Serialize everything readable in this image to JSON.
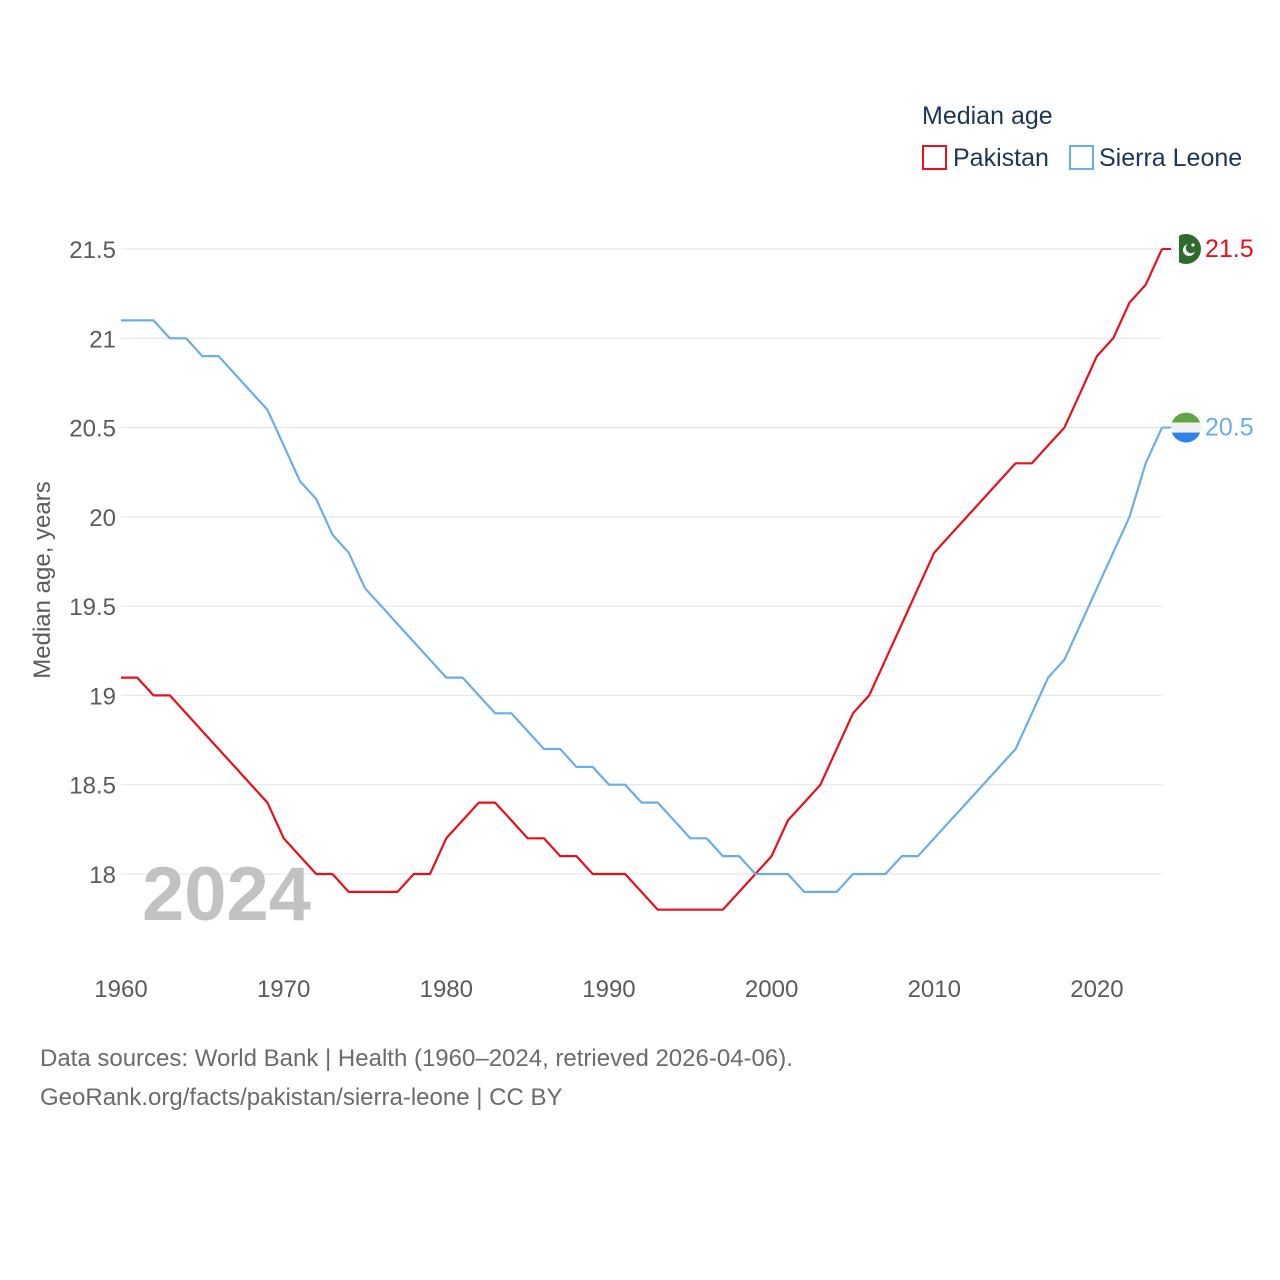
{
  "chart_data": {
    "type": "line",
    "legend_title": "Median age",
    "ylabel": "Median age, years",
    "year_label": "2024",
    "ylim": [
      17.6,
      21.6
    ],
    "xlim": [
      1960,
      2024
    ],
    "y_ticks": [
      "18",
      "18.5",
      "19",
      "19.5",
      "20",
      "20.5",
      "21",
      "21.5"
    ],
    "x_ticks": [
      "1960",
      "1970",
      "1980",
      "1990",
      "2000",
      "2010",
      "2020"
    ],
    "x": [
      1960,
      1961,
      1962,
      1963,
      1964,
      1965,
      1966,
      1967,
      1968,
      1969,
      1970,
      1971,
      1972,
      1973,
      1974,
      1975,
      1976,
      1977,
      1978,
      1979,
      1980,
      1981,
      1982,
      1983,
      1984,
      1985,
      1986,
      1987,
      1988,
      1989,
      1990,
      1991,
      1992,
      1993,
      1994,
      1995,
      1996,
      1997,
      1998,
      1999,
      2000,
      2001,
      2002,
      2003,
      2004,
      2005,
      2006,
      2007,
      2008,
      2009,
      2010,
      2011,
      2012,
      2013,
      2014,
      2015,
      2016,
      2017,
      2018,
      2019,
      2020,
      2021,
      2022,
      2023,
      2024
    ],
    "series": [
      {
        "name": "Pakistan",
        "color": "#e8101a",
        "end_label": "21.5",
        "flag": "pakistan-flag-icon",
        "values": [
          19.1,
          19.1,
          19.0,
          19.0,
          18.9,
          18.8,
          18.7,
          18.6,
          18.5,
          18.4,
          18.2,
          18.1,
          18.0,
          18.0,
          17.9,
          17.9,
          17.9,
          17.9,
          18.0,
          18.0,
          18.2,
          18.3,
          18.4,
          18.4,
          18.3,
          18.2,
          18.2,
          18.1,
          18.1,
          18.0,
          18.0,
          18.0,
          17.9,
          17.8,
          17.8,
          17.8,
          17.8,
          17.8,
          17.9,
          18.0,
          18.1,
          18.3,
          18.4,
          18.5,
          18.7,
          18.9,
          19.0,
          19.2,
          19.4,
          19.6,
          19.8,
          19.9,
          20.0,
          20.1,
          20.2,
          20.3,
          20.3,
          20.4,
          20.5,
          20.7,
          20.9,
          21.0,
          21.2,
          21.3,
          21.5
        ]
      },
      {
        "name": "Sierra Leone",
        "color": "#6aaee8",
        "end_label": "20.5",
        "flag": "sierra-leone-flag-icon",
        "values": [
          21.1,
          21.1,
          21.1,
          21.0,
          21.0,
          20.9,
          20.9,
          20.8,
          20.7,
          20.6,
          20.4,
          20.2,
          20.1,
          19.9,
          19.8,
          19.6,
          19.5,
          19.4,
          19.3,
          19.2,
          19.1,
          19.1,
          19.0,
          18.9,
          18.9,
          18.8,
          18.7,
          18.7,
          18.6,
          18.6,
          18.5,
          18.5,
          18.4,
          18.4,
          18.3,
          18.2,
          18.2,
          18.1,
          18.1,
          18.0,
          18.0,
          18.0,
          17.9,
          17.9,
          17.9,
          18.0,
          18.0,
          18.0,
          18.1,
          18.1,
          18.2,
          18.3,
          18.4,
          18.5,
          18.6,
          18.7,
          18.9,
          19.1,
          19.2,
          19.4,
          19.6,
          19.8,
          20.0,
          20.3,
          20.5
        ]
      }
    ]
  },
  "footer": {
    "source_line": "Data sources: World Bank | Health (1960–2024, retrieved 2026-04-06).",
    "url_line": "GeoRank.org/facts/pakistan/sierra-leone | CC BY"
  }
}
